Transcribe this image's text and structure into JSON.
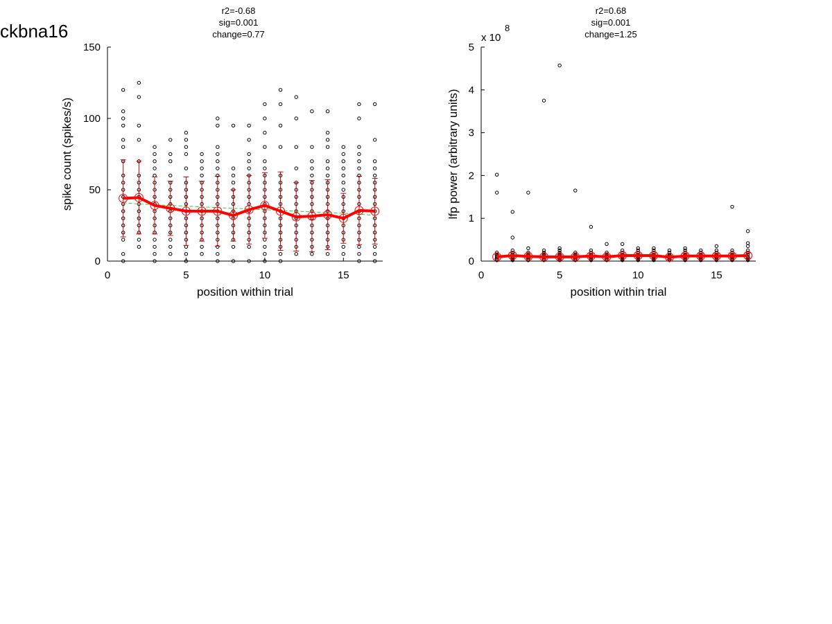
{
  "page": {
    "title": "ckbna16"
  },
  "chart_data": [
    {
      "type": "scatter",
      "stats": [
        "r2=-0.68",
        "sig=0.001",
        "change=0.77"
      ],
      "xlabel": "position within trial",
      "ylabel": "spike count (spikes/s)",
      "xlim": [
        0,
        17.5
      ],
      "ylim": [
        0,
        150
      ],
      "xticks": [
        "0",
        "5",
        "10",
        "15"
      ],
      "yticks": [
        "0",
        "50",
        "100",
        "150"
      ],
      "scale_label": "",
      "grid": false,
      "x": [
        1,
        2,
        3,
        4,
        5,
        6,
        7,
        8,
        9,
        10,
        11,
        12,
        13,
        14,
        15,
        16,
        17
      ],
      "trial_points": [
        [
          0,
          5,
          15,
          20,
          25,
          30,
          35,
          40,
          45,
          50,
          55,
          60,
          70,
          80,
          85,
          95,
          100,
          105,
          120
        ],
        [
          10,
          15,
          20,
          25,
          30,
          35,
          40,
          45,
          50,
          55,
          60,
          70,
          85,
          95,
          115,
          125
        ],
        [
          0,
          5,
          10,
          15,
          20,
          25,
          30,
          35,
          40,
          45,
          50,
          55,
          60,
          65,
          70,
          75,
          80
        ],
        [
          5,
          10,
          15,
          20,
          25,
          30,
          35,
          40,
          45,
          50,
          55,
          60,
          70,
          75,
          85
        ],
        [
          0,
          5,
          10,
          15,
          20,
          25,
          30,
          35,
          40,
          45,
          50,
          55,
          65,
          75,
          80,
          85,
          90
        ],
        [
          5,
          10,
          15,
          20,
          25,
          30,
          35,
          40,
          45,
          50,
          55,
          60,
          65,
          70,
          75
        ],
        [
          0,
          5,
          10,
          15,
          20,
          25,
          30,
          35,
          40,
          45,
          50,
          55,
          60,
          65,
          70,
          75,
          80,
          95,
          100
        ],
        [
          0,
          10,
          15,
          20,
          25,
          30,
          35,
          40,
          45,
          50,
          55,
          60,
          65,
          95
        ],
        [
          0,
          10,
          15,
          20,
          25,
          30,
          35,
          40,
          45,
          50,
          55,
          60,
          65,
          70,
          75,
          85,
          95
        ],
        [
          0,
          5,
          10,
          15,
          20,
          25,
          30,
          35,
          40,
          45,
          50,
          55,
          60,
          65,
          70,
          80,
          90,
          100,
          110
        ],
        [
          0,
          5,
          10,
          15,
          20,
          25,
          30,
          35,
          40,
          45,
          50,
          55,
          60,
          80,
          95,
          110,
          120
        ],
        [
          5,
          10,
          15,
          20,
          25,
          30,
          35,
          40,
          45,
          50,
          55,
          65,
          80,
          100,
          115
        ],
        [
          5,
          10,
          15,
          20,
          25,
          30,
          35,
          40,
          45,
          50,
          55,
          60,
          65,
          70,
          80,
          105
        ],
        [
          5,
          10,
          15,
          20,
          25,
          30,
          35,
          40,
          45,
          50,
          55,
          60,
          65,
          70,
          80,
          85,
          90,
          105
        ],
        [
          5,
          10,
          15,
          20,
          25,
          30,
          35,
          40,
          45,
          50,
          55,
          60,
          65,
          70,
          75,
          80
        ],
        [
          0,
          5,
          10,
          15,
          20,
          25,
          30,
          35,
          40,
          45,
          50,
          55,
          60,
          65,
          70,
          75,
          80,
          100,
          110
        ],
        [
          0,
          5,
          10,
          15,
          20,
          25,
          30,
          35,
          40,
          45,
          50,
          55,
          60,
          65,
          70,
          85,
          110
        ]
      ],
      "mean": [
        44,
        44.5,
        39,
        37,
        35,
        35,
        35,
        32,
        36,
        39,
        35,
        31,
        31.5,
        32.5,
        30,
        35.5,
        35
      ],
      "error": [
        27,
        25.5,
        20,
        19,
        24,
        21,
        24.5,
        18,
        24,
        23,
        27.5,
        24,
        25,
        24.5,
        17.5,
        24,
        23
      ],
      "fit": [
        41,
        40,
        39.5,
        39,
        38.5,
        38,
        37.5,
        37,
        36.5,
        36,
        35.5,
        35,
        34.5,
        34,
        33.5,
        33,
        32
      ]
    },
    {
      "type": "scatter",
      "stats": [
        "r2=0.68",
        "sig=0.001",
        "change=1.25"
      ],
      "xlabel": "position within trial",
      "ylabel": "lfp power (arbitrary units)",
      "xlim": [
        0,
        17.5
      ],
      "ylim": [
        0,
        5
      ],
      "xticks": [
        "0",
        "5",
        "10",
        "15"
      ],
      "yticks": [
        "0",
        "1",
        "2",
        "3",
        "4",
        "5"
      ],
      "scale_label": "x 10",
      "scale_exponent": "8",
      "grid": false,
      "x": [
        1,
        2,
        3,
        4,
        5,
        6,
        7,
        8,
        9,
        10,
        11,
        12,
        13,
        14,
        15,
        16,
        17
      ],
      "trial_points": [
        [
          0.02,
          0.05,
          0.08,
          0.1,
          0.12,
          0.15,
          0.2,
          1.6,
          2.02
        ],
        [
          0.02,
          0.05,
          0.08,
          0.1,
          0.15,
          0.2,
          0.25,
          0.55,
          1.15
        ],
        [
          0.02,
          0.05,
          0.08,
          0.1,
          0.12,
          0.15,
          0.2,
          0.3,
          1.6
        ],
        [
          0.02,
          0.05,
          0.08,
          0.1,
          0.12,
          0.15,
          0.2,
          0.25,
          3.75
        ],
        [
          0.02,
          0.05,
          0.08,
          0.1,
          0.12,
          0.15,
          0.2,
          0.25,
          0.3,
          4.57
        ],
        [
          0.02,
          0.05,
          0.08,
          0.1,
          0.12,
          0.15,
          0.2,
          1.65
        ],
        [
          0.02,
          0.05,
          0.08,
          0.1,
          0.12,
          0.15,
          0.2,
          0.25,
          0.8
        ],
        [
          0.02,
          0.05,
          0.08,
          0.1,
          0.12,
          0.15,
          0.2,
          0.4
        ],
        [
          0.02,
          0.05,
          0.08,
          0.1,
          0.12,
          0.15,
          0.2,
          0.25,
          0.4
        ],
        [
          0.02,
          0.05,
          0.08,
          0.1,
          0.12,
          0.15,
          0.2,
          0.25,
          0.3
        ],
        [
          0.02,
          0.05,
          0.08,
          0.1,
          0.12,
          0.15,
          0.2,
          0.25,
          0.3
        ],
        [
          0.02,
          0.05,
          0.08,
          0.1,
          0.12,
          0.15,
          0.2,
          0.25
        ],
        [
          0.02,
          0.05,
          0.08,
          0.1,
          0.12,
          0.15,
          0.2,
          0.25,
          0.3
        ],
        [
          0.02,
          0.05,
          0.08,
          0.1,
          0.12,
          0.15,
          0.2,
          0.25
        ],
        [
          0.02,
          0.05,
          0.08,
          0.1,
          0.12,
          0.15,
          0.2,
          0.25,
          0.35
        ],
        [
          0.02,
          0.05,
          0.08,
          0.1,
          0.12,
          0.15,
          0.2,
          0.25,
          1.27
        ],
        [
          0.02,
          0.05,
          0.08,
          0.1,
          0.15,
          0.2,
          0.25,
          0.35,
          0.42,
          0.7
        ]
      ],
      "mean": [
        0.1,
        0.13,
        0.11,
        0.1,
        0.1,
        0.1,
        0.12,
        0.1,
        0.13,
        0.13,
        0.13,
        0.09,
        0.12,
        0.12,
        0.12,
        0.12,
        0.13
      ],
      "error": [
        0.05,
        0.06,
        0.05,
        0.05,
        0.05,
        0.05,
        0.05,
        0.05,
        0.05,
        0.05,
        0.05,
        0.05,
        0.05,
        0.05,
        0.05,
        0.05,
        0.06
      ],
      "fit": [
        0.1,
        0.105,
        0.108,
        0.11,
        0.112,
        0.114,
        0.116,
        0.118,
        0.12,
        0.122,
        0.124,
        0.126,
        0.128,
        0.13,
        0.132,
        0.134,
        0.136
      ]
    }
  ]
}
